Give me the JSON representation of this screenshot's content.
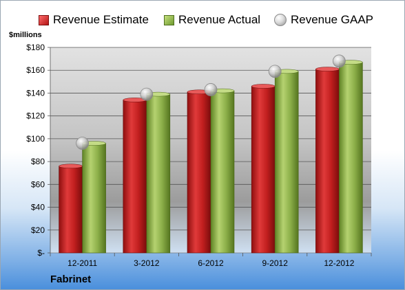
{
  "legend": {
    "estimate": "Revenue Estimate",
    "actual": "Revenue Actual",
    "gaap": "Revenue GAAP"
  },
  "y_unit": "$millions",
  "company": "Fabrinet",
  "colors": {
    "estimate": "#c21f1f",
    "actual": "#8db04a",
    "gaap": "#b0b0b0",
    "plot_bg": "#c8c8c8"
  },
  "chart_data": {
    "type": "bar",
    "categories": [
      "12-2011",
      "3-2012",
      "6-2012",
      "9-2012",
      "12-2012"
    ],
    "series": [
      {
        "name": "Revenue Estimate",
        "type": "bar",
        "values": [
          76,
          134,
          141,
          146,
          161
        ]
      },
      {
        "name": "Revenue Actual",
        "type": "bar",
        "values": [
          96,
          139,
          142,
          159,
          167
        ]
      },
      {
        "name": "Revenue GAAP",
        "type": "scatter",
        "values": [
          96,
          139,
          143,
          159,
          168
        ]
      }
    ],
    "ylabel": "$millions",
    "ylim": [
      0,
      180
    ],
    "yticks": [
      0,
      20,
      40,
      60,
      80,
      100,
      120,
      140,
      160,
      180
    ],
    "ytick_labels": [
      "$-",
      "$20",
      "$40",
      "$60",
      "$80",
      "$100",
      "$120",
      "$140",
      "$160",
      "$180"
    ],
    "grid": true,
    "legend_position": "top"
  }
}
